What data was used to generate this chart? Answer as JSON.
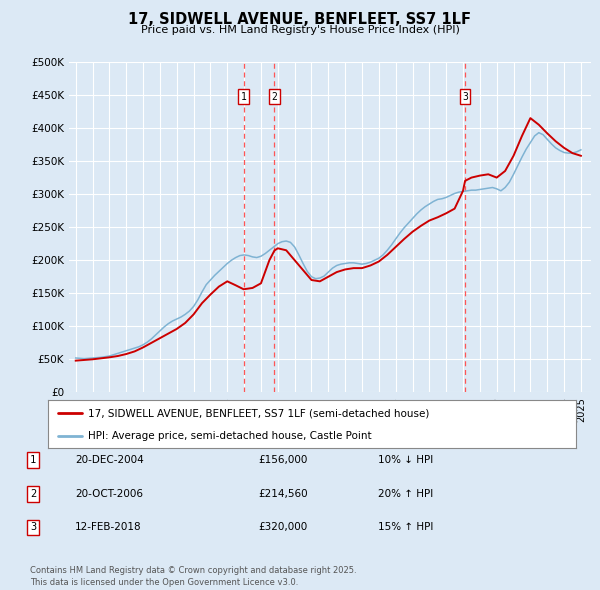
{
  "title": "17, SIDWELL AVENUE, BENFLEET, SS7 1LF",
  "subtitle": "Price paid vs. HM Land Registry's House Price Index (HPI)",
  "ylim": [
    0,
    500000
  ],
  "yticks": [
    0,
    50000,
    100000,
    150000,
    200000,
    250000,
    300000,
    350000,
    400000,
    450000,
    500000
  ],
  "ytick_labels": [
    "£0",
    "£50K",
    "£100K",
    "£150K",
    "£200K",
    "£250K",
    "£300K",
    "£350K",
    "£400K",
    "£450K",
    "£500K"
  ],
  "xlim_start": 1994.6,
  "xlim_end": 2025.6,
  "background_color": "#dce9f5",
  "plot_bg_color": "#dce9f5",
  "grid_color": "#ffffff",
  "line1_color": "#cc0000",
  "line2_color": "#7fb3d3",
  "sale_line_color": "#ff5555",
  "legend_line1": "17, SIDWELL AVENUE, BENFLEET, SS7 1LF (semi-detached house)",
  "legend_line2": "HPI: Average price, semi-detached house, Castle Point",
  "sales": [
    {
      "num": 1,
      "date": "20-DEC-2004",
      "year": 2004.97,
      "price": 156000,
      "label": "10% ↓ HPI"
    },
    {
      "num": 2,
      "date": "20-OCT-2006",
      "year": 2006.8,
      "price": 214560,
      "label": "20% ↑ HPI"
    },
    {
      "num": 3,
      "date": "12-FEB-2018",
      "year": 2018.12,
      "price": 320000,
      "label": "15% ↑ HPI"
    }
  ],
  "footer": "Contains HM Land Registry data © Crown copyright and database right 2025.\nThis data is licensed under the Open Government Licence v3.0.",
  "hpi_data_x": [
    1995.0,
    1995.25,
    1995.5,
    1995.75,
    1996.0,
    1996.25,
    1996.5,
    1996.75,
    1997.0,
    1997.25,
    1997.5,
    1997.75,
    1998.0,
    1998.25,
    1998.5,
    1998.75,
    1999.0,
    1999.25,
    1999.5,
    1999.75,
    2000.0,
    2000.25,
    2000.5,
    2000.75,
    2001.0,
    2001.25,
    2001.5,
    2001.75,
    2002.0,
    2002.25,
    2002.5,
    2002.75,
    2003.0,
    2003.25,
    2003.5,
    2003.75,
    2004.0,
    2004.25,
    2004.5,
    2004.75,
    2005.0,
    2005.25,
    2005.5,
    2005.75,
    2006.0,
    2006.25,
    2006.5,
    2006.75,
    2007.0,
    2007.25,
    2007.5,
    2007.75,
    2008.0,
    2008.25,
    2008.5,
    2008.75,
    2009.0,
    2009.25,
    2009.5,
    2009.75,
    2010.0,
    2010.25,
    2010.5,
    2010.75,
    2011.0,
    2011.25,
    2011.5,
    2011.75,
    2012.0,
    2012.25,
    2012.5,
    2012.75,
    2013.0,
    2013.25,
    2013.5,
    2013.75,
    2014.0,
    2014.25,
    2014.5,
    2014.75,
    2015.0,
    2015.25,
    2015.5,
    2015.75,
    2016.0,
    2016.25,
    2016.5,
    2016.75,
    2017.0,
    2017.25,
    2017.5,
    2017.75,
    2018.0,
    2018.25,
    2018.5,
    2018.75,
    2019.0,
    2019.25,
    2019.5,
    2019.75,
    2020.0,
    2020.25,
    2020.5,
    2020.75,
    2021.0,
    2021.25,
    2021.5,
    2021.75,
    2022.0,
    2022.25,
    2022.5,
    2022.75,
    2023.0,
    2023.25,
    2023.5,
    2023.75,
    2024.0,
    2024.25,
    2024.5,
    2024.75,
    2025.0
  ],
  "hpi_data_y": [
    52000,
    51500,
    51000,
    51500,
    52000,
    52500,
    53000,
    54000,
    55000,
    57000,
    59000,
    61000,
    63000,
    65000,
    67000,
    69000,
    72000,
    76000,
    81000,
    87000,
    93000,
    99000,
    104000,
    108000,
    111000,
    114000,
    118000,
    123000,
    130000,
    140000,
    152000,
    163000,
    170000,
    177000,
    183000,
    189000,
    195000,
    200000,
    204000,
    207000,
    208000,
    207000,
    205000,
    204000,
    206000,
    210000,
    215000,
    220000,
    225000,
    228000,
    229000,
    227000,
    220000,
    208000,
    195000,
    183000,
    175000,
    172000,
    173000,
    176000,
    182000,
    188000,
    192000,
    194000,
    195000,
    196000,
    196000,
    195000,
    194000,
    195000,
    197000,
    200000,
    203000,
    208000,
    215000,
    223000,
    232000,
    241000,
    249000,
    256000,
    263000,
    270000,
    276000,
    281000,
    285000,
    289000,
    292000,
    293000,
    295000,
    298000,
    301000,
    303000,
    304000,
    305000,
    306000,
    306000,
    307000,
    308000,
    309000,
    310000,
    308000,
    305000,
    310000,
    318000,
    330000,
    343000,
    356000,
    368000,
    378000,
    388000,
    393000,
    390000,
    383000,
    376000,
    370000,
    366000,
    363000,
    362000,
    362000,
    364000,
    367000
  ],
  "price_data_x": [
    1995.0,
    1995.5,
    1996.0,
    1996.5,
    1997.0,
    1997.5,
    1998.0,
    1998.5,
    1999.0,
    1999.5,
    2000.0,
    2000.5,
    2001.0,
    2001.5,
    2002.0,
    2002.5,
    2003.0,
    2003.5,
    2004.0,
    2004.5,
    2004.97,
    2005.5,
    2006.0,
    2006.5,
    2006.8,
    2007.0,
    2007.5,
    2008.0,
    2008.5,
    2009.0,
    2009.5,
    2010.0,
    2010.5,
    2011.0,
    2011.5,
    2012.0,
    2012.5,
    2013.0,
    2013.5,
    2014.0,
    2014.5,
    2015.0,
    2015.5,
    2016.0,
    2016.5,
    2017.0,
    2017.5,
    2018.0,
    2018.12,
    2018.5,
    2019.0,
    2019.5,
    2020.0,
    2020.5,
    2021.0,
    2021.5,
    2022.0,
    2022.5,
    2023.0,
    2023.5,
    2024.0,
    2024.5,
    2025.0
  ],
  "price_data_y": [
    48000,
    49000,
    50000,
    51500,
    53000,
    55000,
    58000,
    62000,
    68000,
    75000,
    82000,
    89000,
    96000,
    105000,
    118000,
    135000,
    148000,
    160000,
    168000,
    162000,
    156000,
    158000,
    165000,
    200000,
    214560,
    218000,
    215000,
    200000,
    185000,
    170000,
    168000,
    175000,
    182000,
    186000,
    188000,
    188000,
    192000,
    198000,
    208000,
    220000,
    232000,
    243000,
    252000,
    260000,
    265000,
    271000,
    278000,
    305000,
    320000,
    325000,
    328000,
    330000,
    325000,
    335000,
    358000,
    388000,
    415000,
    405000,
    392000,
    380000,
    370000,
    362000,
    358000
  ]
}
